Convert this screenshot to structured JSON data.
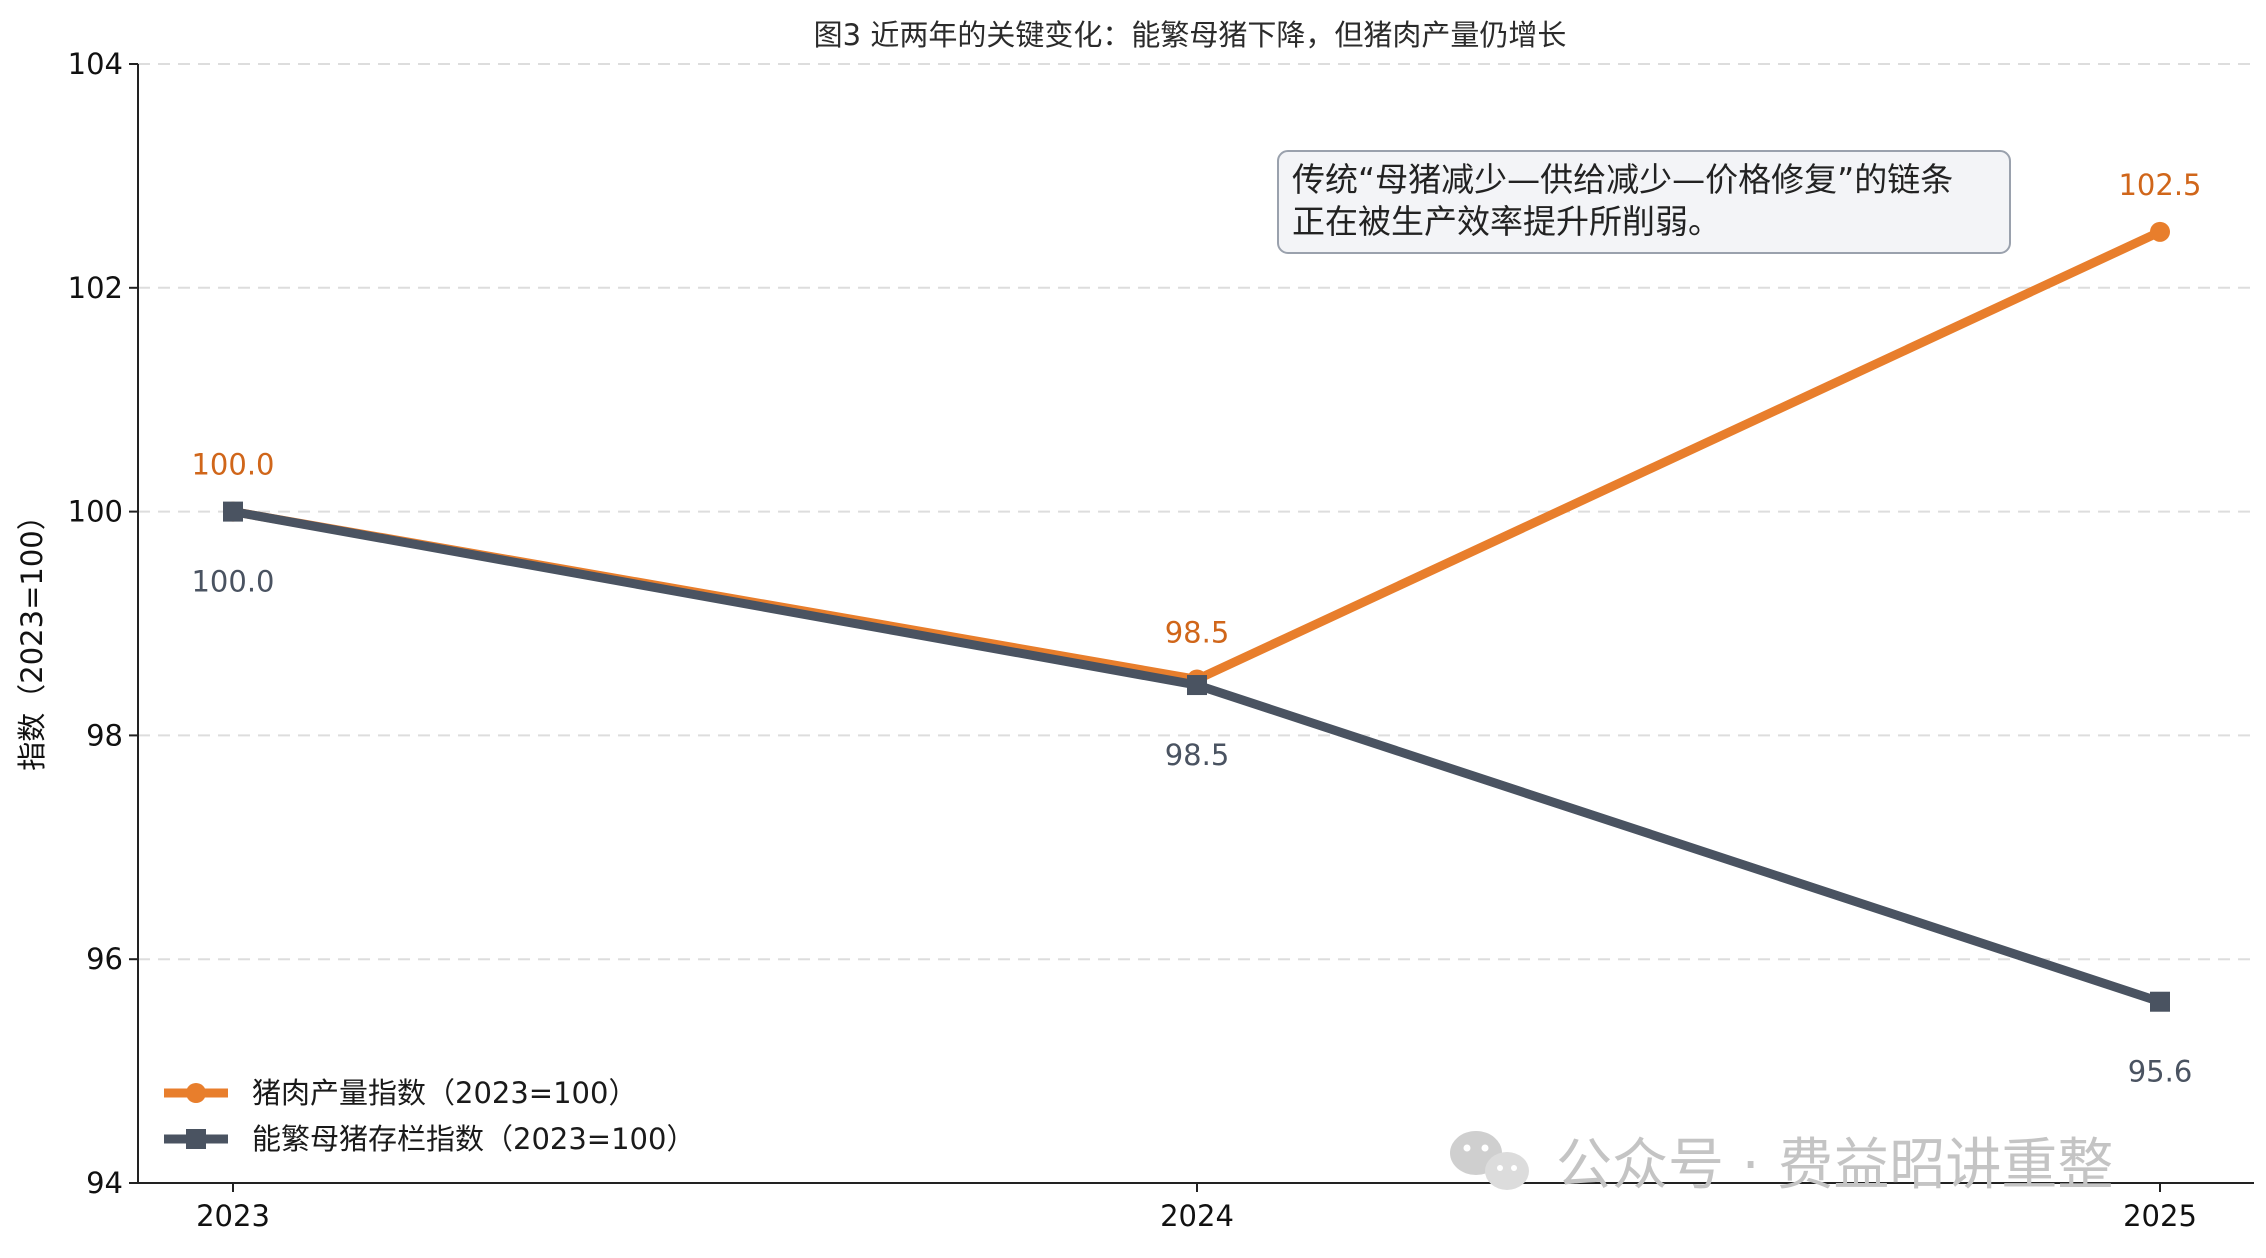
{
  "chart_data": {
    "type": "line",
    "title": "图3 近两年的关键变化：能繁母猪下降，但猪肉产量仍增长",
    "xlabel": "",
    "ylabel": "指数（2023=100）",
    "categories": [
      "2023",
      "2024",
      "2025"
    ],
    "ylim": [
      94,
      104
    ],
    "yticks": [
      "94",
      "96",
      "98",
      "100",
      "102",
      "104"
    ],
    "grid": "y-dashed",
    "legend_position": "bottom-left",
    "series": [
      {
        "name": "猪肉产量指数（2023=100）",
        "values": [
          100.0,
          98.5,
          102.5
        ],
        "labels": [
          "100.0",
          "98.5",
          "102.5"
        ],
        "color": "#e87e2c",
        "label_color": "#d0661a",
        "marker": "circle"
      },
      {
        "name": "能繁母猪存栏指数（2023=100）",
        "values": [
          100.0,
          98.45,
          95.62
        ],
        "labels": [
          "100.0",
          "98.5",
          "95.6"
        ],
        "color": "#4a5361",
        "label_color": "#4a5361",
        "marker": "square"
      }
    ],
    "annotation": {
      "lines": [
        "传统“母猪减少—供给减少—价格修复”的链条",
        "正在被生产效率提升所削弱。"
      ]
    }
  },
  "watermark": "公众号 · 费益昭讲重整"
}
